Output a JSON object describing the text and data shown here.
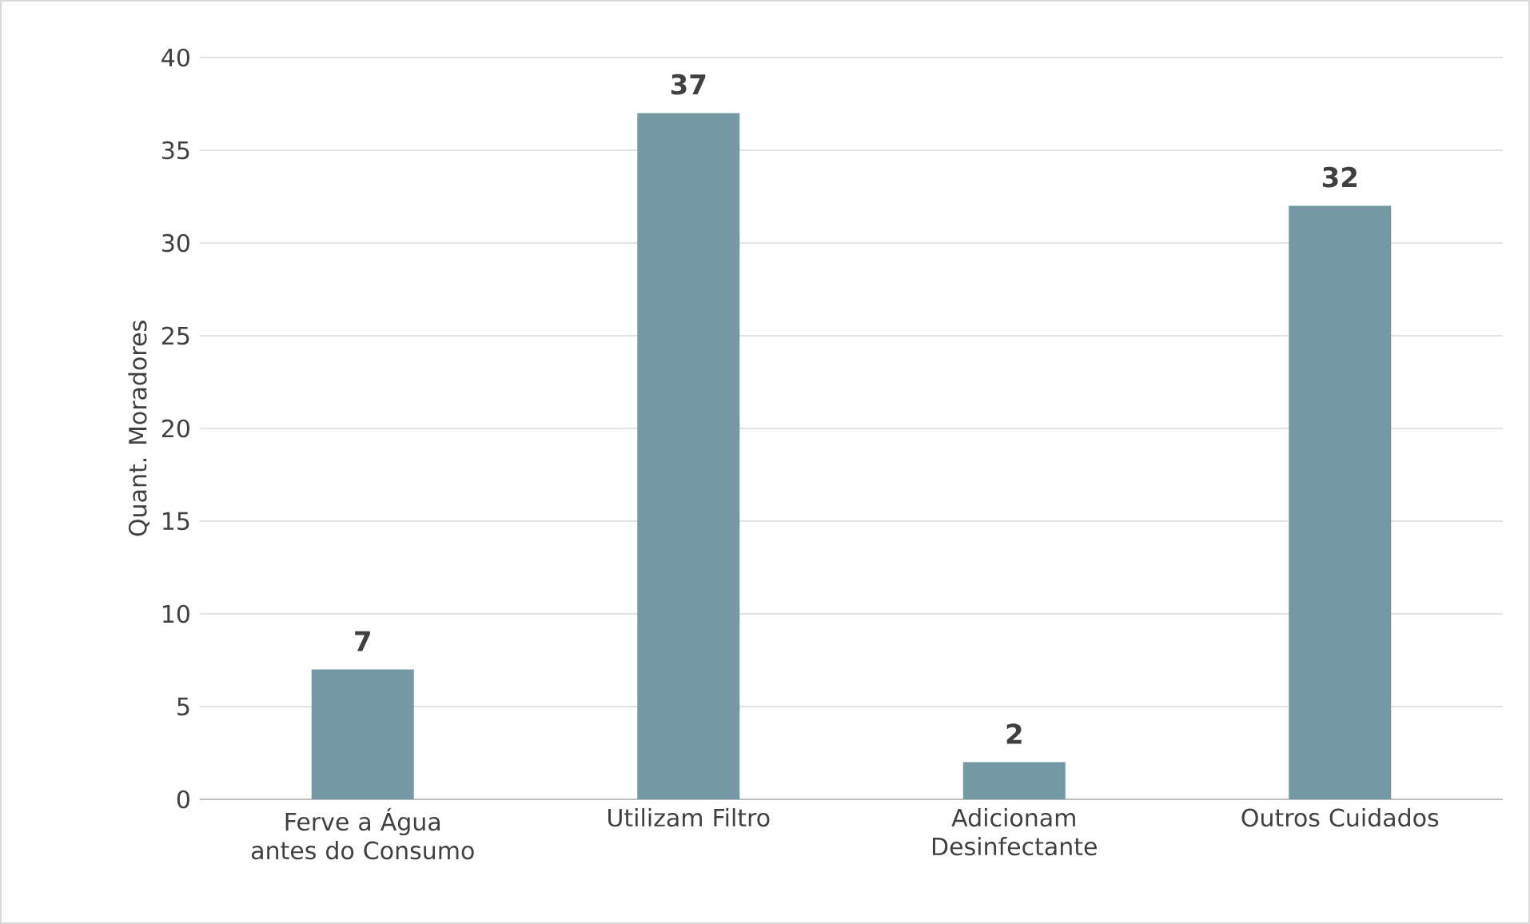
{
  "chart_data": {
    "type": "bar",
    "ylabel": "Quant. Moradores",
    "categories": [
      "Ferve a Água antes do Consumo",
      "Utilizam Filtro",
      "Adicionam Desinfectante",
      "Outros Cuidados"
    ],
    "values": [
      7,
      37,
      2,
      32
    ],
    "color": "#7599a4",
    "ylim": [
      0,
      40
    ],
    "yticks": [
      0,
      5,
      10,
      15,
      20,
      25,
      30,
      35,
      40
    ],
    "grid": "y",
    "data_labels": true
  }
}
